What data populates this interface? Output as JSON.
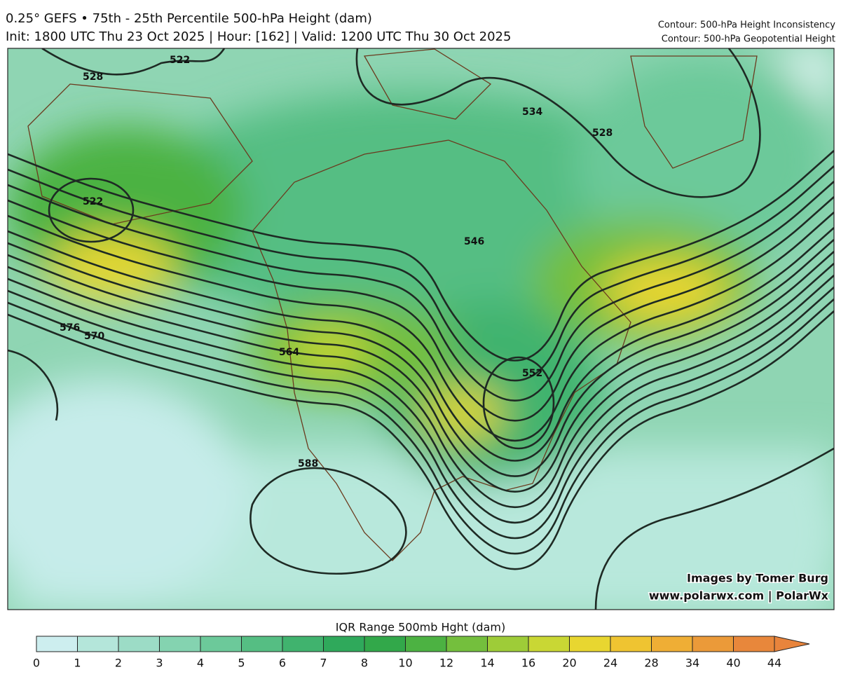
{
  "header": {
    "title": "0.25° GEFS • 75th - 25th Percentile 500-hPa Height (dam)",
    "subtitle": "Init: 1800 UTC Thu 23 Oct 2025 | Hour: [162] | Valid: 1200 UTC Thu 30 Oct 2025",
    "legend_lines": [
      "Contour: 500-hPa Height Inconsistency",
      "Contour: 500-hPa Geopotential Height"
    ]
  },
  "map": {
    "contour_labels": [
      522,
      528,
      522,
      534,
      528,
      546,
      552,
      564,
      576,
      570,
      588
    ],
    "credits": [
      "Images by Tomer Burg",
      "www.polarwx.com | PolarWx"
    ]
  },
  "colorbar": {
    "label": "IQR Range 500mb Hght (dam)",
    "ticks": [
      0,
      1,
      2,
      3,
      4,
      5,
      6,
      7,
      8,
      10,
      12,
      14,
      16,
      20,
      24,
      28,
      34,
      40,
      44
    ],
    "colors": [
      "#cdeeef",
      "#b4e6da",
      "#9cdcc6",
      "#84d3b0",
      "#6cc99a",
      "#55be83",
      "#40b36e",
      "#2fa95b",
      "#32a84a",
      "#4cb242",
      "#74bf3d",
      "#9ecc38",
      "#c9d734",
      "#e8d630",
      "#efc431",
      "#efae35",
      "#eb9a39",
      "#e8873b"
    ],
    "extend_color": "#e8843c"
  }
}
